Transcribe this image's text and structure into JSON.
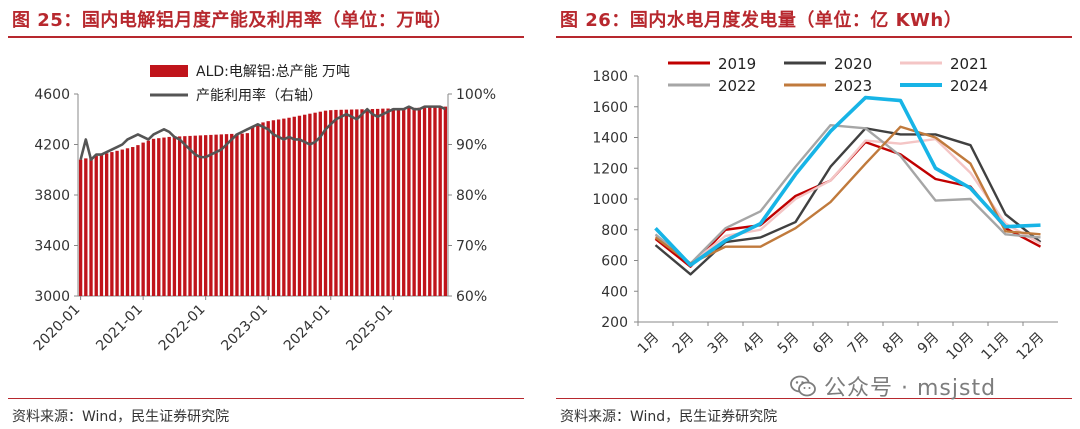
{
  "left_panel": {
    "title": "图 25：国内电解铝月度产能及利用率（单位：万吨）",
    "source": "资料来源：Wind，民生证券研究院"
  },
  "right_panel": {
    "title": "图 26：国内水电月度发电量（单位：亿 KWh）",
    "source": "资料来源：Wind，民生证券研究院"
  },
  "watermark": {
    "text": "公众号 · msjstd",
    "icon": "wechat-icon"
  },
  "colors": {
    "title_red": "#b7282e",
    "bar_red": "#c0141b",
    "util_line": "#555555"
  },
  "chart_data": [
    {
      "type": "bar",
      "title": "国内电解铝月度产能及利用率",
      "x_tick_labels": [
        "2020-01",
        "2021-01",
        "2022-01",
        "2023-01",
        "2024-01",
        "2025-01"
      ],
      "y_left_ticks": [
        "4600",
        "4200",
        "3800",
        "3400",
        "3000"
      ],
      "y_right_ticks": [
        "100%",
        "90%",
        "80%",
        "70%",
        "60%"
      ],
      "ylim_left": [
        3000,
        4600
      ],
      "ylim_right": [
        60,
        100
      ],
      "legend_position": "top-right",
      "series": [
        {
          "name": "ALD:电解铝:总产能 万吨",
          "axis": "left",
          "type": "bar",
          "values": [
            4080,
            4090,
            4100,
            4110,
            4120,
            4130,
            4140,
            4150,
            4160,
            4170,
            4180,
            4195,
            4215,
            4230,
            4245,
            4250,
            4255,
            4260,
            4262,
            4264,
            4266,
            4268,
            4270,
            4272,
            4274,
            4276,
            4278,
            4280,
            4282,
            4284,
            4285,
            4286,
            4290,
            4340,
            4360,
            4375,
            4385,
            4392,
            4398,
            4405,
            4412,
            4420,
            4428,
            4436,
            4444,
            4452,
            4460,
            4468,
            4472,
            4474,
            4475,
            4476,
            4477,
            4478,
            4479,
            4480,
            4481,
            4482,
            4484,
            4485,
            4486,
            4487,
            4488,
            4489,
            4490,
            4491,
            4492,
            4493,
            4494,
            4496,
            4500
          ]
        },
        {
          "name": "产能利用率（右轴）",
          "axis": "right",
          "type": "line",
          "values": [
            87,
            91,
            87,
            88,
            88,
            88.5,
            89,
            89.5,
            90,
            91,
            91.5,
            92,
            91.5,
            91,
            92,
            92.5,
            93,
            92.5,
            91.5,
            91,
            90,
            89,
            88,
            87.5,
            87.5,
            88,
            88.5,
            89,
            90,
            91,
            92,
            92.5,
            93,
            93.5,
            94,
            93.5,
            93,
            92,
            91.5,
            91,
            91.5,
            91,
            91,
            90.5,
            90,
            90.5,
            91.5,
            93,
            94,
            95,
            95.5,
            96,
            95.5,
            95,
            96,
            97,
            96,
            95.5,
            96,
            96.5,
            97,
            97,
            97,
            97.5,
            97,
            97,
            97.5,
            97.5,
            97.5,
            97.5,
            97
          ]
        }
      ]
    },
    {
      "type": "line",
      "title": "国内水电月度发电量",
      "categories": [
        "1月",
        "2月",
        "3月",
        "4月",
        "5月",
        "6月",
        "7月",
        "8月",
        "9月",
        "10月",
        "11月",
        "12月"
      ],
      "y_ticks": [
        "1800",
        "1600",
        "1400",
        "1200",
        "1000",
        "800",
        "600",
        "400",
        "200"
      ],
      "ylim": [
        200,
        1800
      ],
      "legend_position": "top",
      "series": [
        {
          "name": "2019",
          "color": "#c00000",
          "values": [
            740,
            560,
            800,
            830,
            1020,
            1120,
            1370,
            1290,
            1130,
            1080,
            810,
            690
          ]
        },
        {
          "name": "2020",
          "color": "#404040",
          "values": [
            700,
            510,
            720,
            750,
            850,
            1210,
            1460,
            1420,
            1420,
            1350,
            900,
            720
          ]
        },
        {
          "name": "2021",
          "color": "#f4c5c5",
          "values": [
            760,
            580,
            760,
            800,
            1000,
            1120,
            1380,
            1360,
            1390,
            1170,
            840,
            710
          ]
        },
        {
          "name": "2022",
          "color": "#a6a6a6",
          "values": [
            770,
            580,
            810,
            920,
            1210,
            1480,
            1460,
            1280,
            990,
            1000,
            770,
            750
          ]
        },
        {
          "name": "2023",
          "color": "#c07a3c",
          "values": [
            750,
            580,
            690,
            690,
            810,
            980,
            1230,
            1470,
            1400,
            1230,
            790,
            770
          ]
        },
        {
          "name": "2024",
          "color": "#17b4e6",
          "values": [
            810,
            570,
            730,
            840,
            1160,
            1440,
            1660,
            1640,
            1200,
            1070,
            820,
            830
          ]
        }
      ]
    }
  ]
}
